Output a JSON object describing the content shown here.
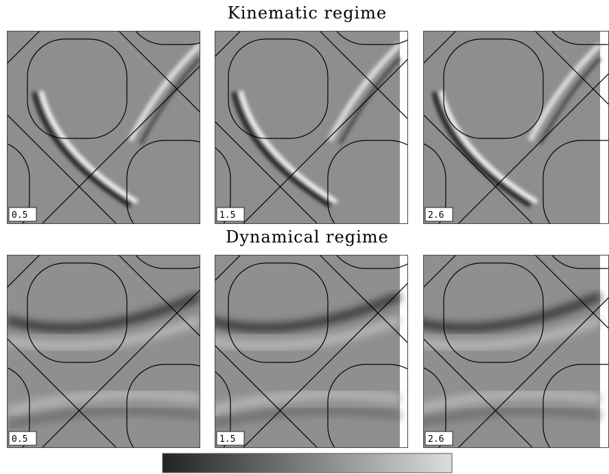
{
  "rows": [
    {
      "title": "Kinematic regime",
      "panels": [
        {
          "label": "0.5"
        },
        {
          "label": "1.5"
        },
        {
          "label": "2.6"
        }
      ]
    },
    {
      "title": "Dynamical regime",
      "panels": [
        {
          "label": "0.5"
        },
        {
          "label": "1.5"
        },
        {
          "label": "2.6"
        }
      ]
    }
  ]
}
